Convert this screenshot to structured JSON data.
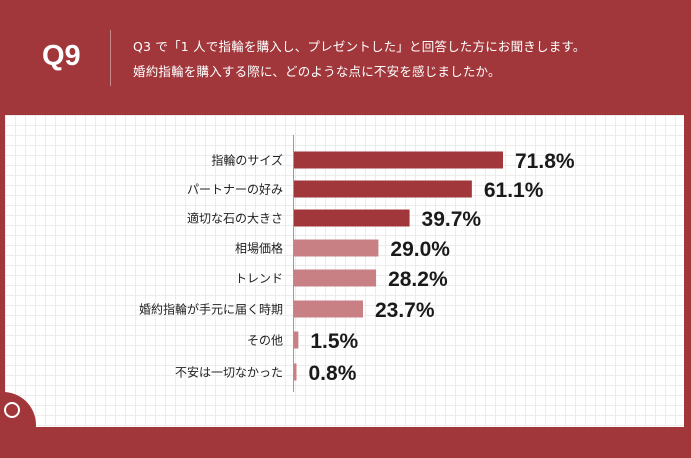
{
  "header": {
    "question_no": "Q9",
    "line1": "Q3 で「1 人で指輪を購入し、プレゼントした」と回答した方にお聞きします。",
    "line2": "婚約指輪を購入する際に、どのような点に不安を感じましたか。"
  },
  "colors": {
    "background": "#a1373b",
    "bar_top": "#a1373b",
    "bar_other": "#c98084"
  },
  "chart_data": {
    "type": "bar",
    "orientation": "horizontal",
    "categories": [
      "指輪のサイズ",
      "パートナーの好み",
      "適切な石の大きさ",
      "相場価格",
      "トレンド",
      "婚約指輪が手元に届く時期",
      "その他",
      "不安は一切なかった"
    ],
    "values": [
      71.8,
      61.1,
      39.7,
      29.0,
      28.2,
      23.7,
      1.5,
      0.8
    ],
    "data_labels": [
      "71.8%",
      "61.1%",
      "39.7%",
      "29.0%",
      "28.2%",
      "23.7%",
      "1.5%",
      "0.8%"
    ],
    "highlighted_top": 3,
    "grid": true
  }
}
